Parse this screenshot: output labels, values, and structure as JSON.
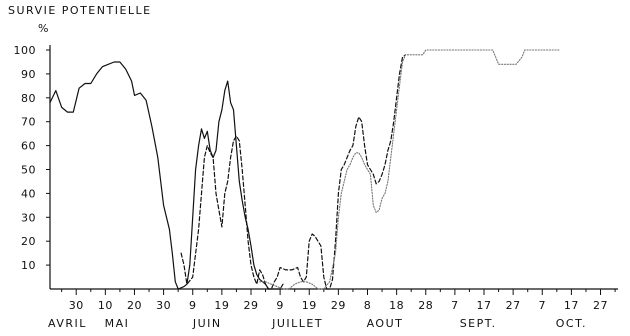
{
  "chart_data": {
    "type": "line",
    "title": "SURVIE POTENTIELLE",
    "ylabel": "%",
    "ylim": [
      0,
      100
    ],
    "yticks": [
      10,
      20,
      30,
      40,
      50,
      60,
      70,
      80,
      90,
      100
    ],
    "xlabel": "",
    "x_unit": "day of year (Apr 21 = 111)",
    "xlim": [
      111,
      306
    ],
    "xticks": [
      {
        "label": "30",
        "day": 120
      },
      {
        "label": "10",
        "day": 130
      },
      {
        "label": "20",
        "day": 140
      },
      {
        "label": "30",
        "day": 150
      },
      {
        "label": "9",
        "day": 160
      },
      {
        "label": "19",
        "day": 170
      },
      {
        "label": "29",
        "day": 180
      },
      {
        "label": "9",
        "day": 190
      },
      {
        "label": "19",
        "day": 200
      },
      {
        "label": "29",
        "day": 210
      },
      {
        "label": "8",
        "day": 220
      },
      {
        "label": "18",
        "day": 230
      },
      {
        "label": "28",
        "day": 240
      },
      {
        "label": "7",
        "day": 250
      },
      {
        "label": "17",
        "day": 260
      },
      {
        "label": "27",
        "day": 270
      },
      {
        "label": "7",
        "day": 280
      },
      {
        "label": "17",
        "day": 290
      },
      {
        "label": "27",
        "day": 300
      }
    ],
    "months": [
      {
        "label": "AVRIL",
        "day": 117
      },
      {
        "label": "MAI",
        "day": 134
      },
      {
        "label": "JUIN",
        "day": 165
      },
      {
        "label": "JUILLET",
        "day": 196
      },
      {
        "label": "AOUT",
        "day": 226
      },
      {
        "label": "SEPT.",
        "day": 258
      },
      {
        "label": "OCT.",
        "day": 290
      }
    ],
    "grid": false,
    "series": [
      {
        "style": "solid",
        "color": "#111111",
        "points": [
          [
            111,
            78
          ],
          [
            113,
            83
          ],
          [
            115,
            76
          ],
          [
            117,
            74
          ],
          [
            119,
            74
          ],
          [
            121,
            84
          ],
          [
            123,
            86
          ],
          [
            125,
            86
          ],
          [
            127,
            90
          ],
          [
            129,
            93
          ],
          [
            131,
            94
          ],
          [
            133,
            95
          ],
          [
            135,
            95
          ],
          [
            137,
            92
          ],
          [
            139,
            87
          ],
          [
            140,
            81
          ],
          [
            142,
            82
          ],
          [
            144,
            79
          ],
          [
            146,
            68
          ],
          [
            148,
            55
          ],
          [
            149,
            45
          ],
          [
            150,
            35
          ],
          [
            151,
            30
          ],
          [
            152,
            25
          ],
          [
            153,
            15
          ],
          [
            154,
            3
          ],
          [
            155,
            0
          ],
          [
            157,
            1
          ],
          [
            158,
            2
          ],
          [
            159,
            10
          ],
          [
            160,
            30
          ],
          [
            161,
            50
          ],
          [
            162,
            60
          ],
          [
            163,
            67
          ],
          [
            164,
            63
          ],
          [
            165,
            66
          ],
          [
            166,
            58
          ],
          [
            167,
            55
          ],
          [
            168,
            58
          ],
          [
            169,
            70
          ],
          [
            170,
            75
          ],
          [
            171,
            83
          ],
          [
            172,
            87
          ],
          [
            173,
            78
          ],
          [
            174,
            75
          ],
          [
            175,
            60
          ],
          [
            176,
            45
          ],
          [
            177,
            37
          ],
          [
            178,
            30
          ],
          [
            179,
            25
          ],
          [
            180,
            18
          ],
          [
            181,
            10
          ],
          [
            182,
            6
          ],
          [
            183,
            4
          ],
          [
            184,
            3
          ],
          [
            185,
            2
          ],
          [
            186,
            0
          ],
          [
            187,
            0
          ],
          [
            188,
            0
          ],
          [
            189,
            0
          ],
          [
            190,
            0
          ],
          [
            191,
            2
          ]
        ]
      },
      {
        "style": "dashed",
        "color": "#111111",
        "points": [
          [
            156,
            15
          ],
          [
            157,
            10
          ],
          [
            158,
            2
          ],
          [
            160,
            5
          ],
          [
            162,
            25
          ],
          [
            163,
            40
          ],
          [
            164,
            55
          ],
          [
            165,
            60
          ],
          [
            166,
            57
          ],
          [
            167,
            55
          ],
          [
            168,
            40
          ],
          [
            169,
            33
          ],
          [
            170,
            26
          ],
          [
            171,
            40
          ],
          [
            172,
            45
          ],
          [
            173,
            55
          ],
          [
            174,
            62
          ],
          [
            175,
            64
          ],
          [
            176,
            62
          ],
          [
            177,
            50
          ],
          [
            178,
            35
          ],
          [
            179,
            20
          ],
          [
            180,
            10
          ],
          [
            181,
            5
          ],
          [
            182,
            2
          ],
          [
            183,
            8
          ],
          [
            184,
            6
          ],
          [
            185,
            2
          ],
          [
            186,
            0
          ],
          [
            187,
            0
          ],
          [
            188,
            3
          ],
          [
            189,
            5
          ],
          [
            190,
            9
          ],
          [
            192,
            8
          ],
          [
            194,
            8
          ],
          [
            196,
            9
          ],
          [
            197,
            5
          ],
          [
            198,
            3
          ],
          [
            199,
            5
          ],
          [
            200,
            20
          ],
          [
            201,
            23
          ],
          [
            202,
            22
          ],
          [
            203,
            20
          ],
          [
            204,
            18
          ],
          [
            205,
            5
          ],
          [
            206,
            0
          ],
          [
            207,
            0
          ],
          [
            208,
            4
          ],
          [
            209,
            20
          ],
          [
            210,
            40
          ],
          [
            211,
            50
          ],
          [
            212,
            52
          ],
          [
            213,
            55
          ],
          [
            214,
            58
          ],
          [
            215,
            60
          ],
          [
            216,
            68
          ],
          [
            217,
            72
          ],
          [
            218,
            70
          ],
          [
            219,
            60
          ],
          [
            220,
            52
          ],
          [
            221,
            50
          ],
          [
            222,
            48
          ],
          [
            223,
            44
          ],
          [
            224,
            45
          ],
          [
            225,
            48
          ],
          [
            226,
            52
          ],
          [
            227,
            58
          ],
          [
            228,
            62
          ],
          [
            229,
            70
          ],
          [
            230,
            80
          ],
          [
            231,
            90
          ],
          [
            232,
            97
          ],
          [
            233,
            98
          ]
        ]
      },
      {
        "style": "dotted",
        "color": "#777777",
        "points": [
          [
            183,
            3
          ],
          [
            185,
            3
          ],
          [
            187,
            2
          ],
          [
            189,
            1
          ],
          [
            191,
            0
          ],
          [
            193,
            0
          ],
          [
            195,
            2
          ],
          [
            197,
            3
          ],
          [
            199,
            3
          ],
          [
            201,
            2
          ],
          [
            203,
            0
          ],
          [
            205,
            0
          ],
          [
            207,
            3
          ],
          [
            209,
            15
          ],
          [
            210,
            30
          ],
          [
            211,
            40
          ],
          [
            212,
            45
          ],
          [
            213,
            50
          ],
          [
            214,
            52
          ],
          [
            215,
            55
          ],
          [
            216,
            57
          ],
          [
            217,
            57
          ],
          [
            218,
            55
          ],
          [
            219,
            52
          ],
          [
            220,
            50
          ],
          [
            221,
            48
          ],
          [
            222,
            35
          ],
          [
            223,
            32
          ],
          [
            224,
            33
          ],
          [
            225,
            38
          ],
          [
            226,
            40
          ],
          [
            227,
            45
          ],
          [
            228,
            55
          ],
          [
            229,
            65
          ],
          [
            230,
            75
          ],
          [
            231,
            85
          ],
          [
            232,
            95
          ],
          [
            233,
            98
          ],
          [
            236,
            98
          ],
          [
            239,
            98
          ],
          [
            240,
            100
          ],
          [
            243,
            100
          ],
          [
            247,
            100
          ],
          [
            251,
            100
          ],
          [
            255,
            100
          ],
          [
            259,
            100
          ],
          [
            263,
            100
          ],
          [
            264,
            97
          ],
          [
            265,
            94
          ],
          [
            268,
            94
          ],
          [
            271,
            94
          ],
          [
            273,
            97
          ],
          [
            274,
            100
          ],
          [
            278,
            100
          ],
          [
            282,
            100
          ],
          [
            286,
            100
          ]
        ]
      }
    ]
  }
}
